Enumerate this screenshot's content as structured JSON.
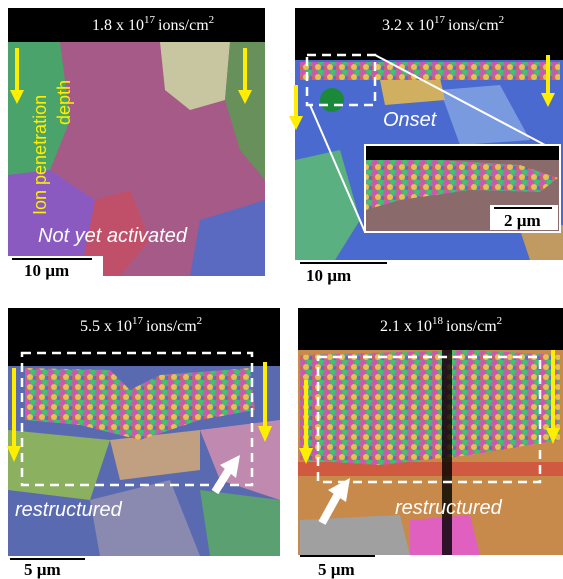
{
  "panels": [
    {
      "dose": {
        "mantissa": "1.8 x 10",
        "exponent": "17",
        "unit": "ions/cm",
        "unit_exponent": "2"
      },
      "side_label": [
        "Ion penetration",
        "depth"
      ],
      "caption": "Not yet activated",
      "scale_bar": "10 µm"
    },
    {
      "dose": {
        "mantissa": "3.2 x 10",
        "exponent": "17",
        "unit": "ions/cm",
        "unit_exponent": "2"
      },
      "caption": "Onset",
      "inset_scale_bar": "2 µm",
      "scale_bar": "10 µm"
    },
    {
      "dose": {
        "mantissa": "5.5 x 10",
        "exponent": "17",
        "unit": "ions/cm",
        "unit_exponent": "2"
      },
      "caption": "restructured",
      "scale_bar": "5 µm"
    },
    {
      "dose": {
        "mantissa": "2.1 x 10",
        "exponent": "18",
        "unit": "ions/cm",
        "unit_exponent": "2"
      },
      "caption": "restructured",
      "scale_bar": "5 µm"
    }
  ]
}
